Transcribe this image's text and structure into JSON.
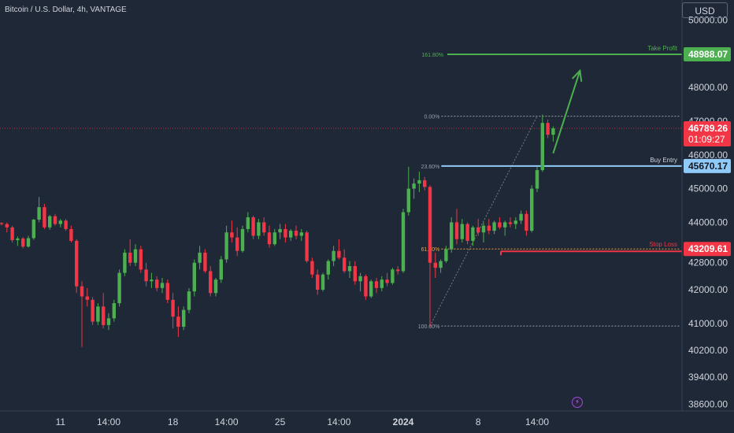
{
  "header": {
    "title": "Bitcoin / U.S. Dollar, 4h, VANTAGE",
    "currency": "USD"
  },
  "colors": {
    "background": "#1f2837",
    "axis_text": "#d1d4dc",
    "up": "#4caf50",
    "down": "#f23645",
    "take_profit": "#4caf50",
    "stop_loss": "#f23645",
    "entry": "#90caf9",
    "last_price": "#f23645"
  },
  "chart_data": {
    "type": "candlestick",
    "title": "Bitcoin / U.S. Dollar, 4h, VANTAGE",
    "y_ticks": [
      "50000.00",
      "48000.00",
      "47000.00",
      "46000.00",
      "45000.00",
      "44000.00",
      "42800.00",
      "42000.00",
      "41000.00",
      "40200.00",
      "39400.00",
      "38600.00"
    ],
    "y_tick_values": [
      50000,
      48000,
      47000,
      46000,
      45000,
      44000,
      42800,
      42000,
      41000,
      40200,
      39400,
      38600
    ],
    "x_ticks": [
      "11",
      "14:00",
      "18",
      "14:00",
      "25",
      "14:00",
      "2024",
      "8",
      "14:00"
    ],
    "x_tick_index": [
      11,
      20,
      32,
      42,
      52,
      63,
      75,
      89,
      100
    ],
    "ylim": [
      38400,
      50600
    ],
    "grid": false,
    "candles": [
      [
        43980,
        44000,
        43910,
        43950
      ],
      [
        43950,
        43990,
        43700,
        43850
      ],
      [
        43850,
        43900,
        43400,
        43470
      ],
      [
        43470,
        43580,
        43300,
        43520
      ],
      [
        43520,
        43560,
        43230,
        43280
      ],
      [
        43280,
        43600,
        43250,
        43530
      ],
      [
        43530,
        44100,
        43480,
        44080
      ],
      [
        44080,
        44750,
        44000,
        44450
      ],
      [
        44450,
        44550,
        43800,
        43850
      ],
      [
        43850,
        44220,
        43780,
        44180
      ],
      [
        44180,
        44250,
        43900,
        43950
      ],
      [
        43950,
        44100,
        43850,
        44050
      ],
      [
        44050,
        44100,
        43750,
        43800
      ],
      [
        43800,
        43900,
        43400,
        43450
      ],
      [
        43450,
        43500,
        41900,
        42100
      ],
      [
        42100,
        42250,
        40300,
        41800
      ],
      [
        41800,
        42050,
        41500,
        41700
      ],
      [
        41700,
        41780,
        40950,
        41050
      ],
      [
        41050,
        41600,
        40950,
        41500
      ],
      [
        41500,
        41900,
        40850,
        40950
      ],
      [
        40950,
        41300,
        40800,
        41150
      ],
      [
        41150,
        41700,
        41050,
        41600
      ],
      [
        41600,
        42600,
        41500,
        42500
      ],
      [
        42500,
        43200,
        42400,
        43100
      ],
      [
        43100,
        43500,
        42700,
        42800
      ],
      [
        42800,
        43350,
        42700,
        43200
      ],
      [
        43200,
        43300,
        42500,
        42600
      ],
      [
        42600,
        42800,
        42100,
        42250
      ],
      [
        42250,
        42500,
        42050,
        42300
      ],
      [
        42300,
        42400,
        41950,
        42050
      ],
      [
        42050,
        42350,
        41900,
        42200
      ],
      [
        42200,
        42300,
        41600,
        41700
      ],
      [
        41700,
        41900,
        40850,
        41200
      ],
      [
        41200,
        41500,
        40600,
        40900
      ],
      [
        40900,
        41500,
        40800,
        41400
      ],
      [
        41400,
        42050,
        41300,
        41950
      ],
      [
        41950,
        42900,
        41800,
        42800
      ],
      [
        42800,
        43300,
        42600,
        43100
      ],
      [
        43100,
        43200,
        42500,
        42550
      ],
      [
        42550,
        42700,
        41800,
        41900
      ],
      [
        41900,
        42350,
        41800,
        42300
      ],
      [
        42300,
        43000,
        42200,
        42900
      ],
      [
        42900,
        43900,
        42800,
        43700
      ],
      [
        43700,
        44050,
        43400,
        43550
      ],
      [
        43550,
        43850,
        43000,
        43150
      ],
      [
        43150,
        43900,
        43100,
        43800
      ],
      [
        43800,
        44300,
        43700,
        44150
      ],
      [
        44150,
        44200,
        43500,
        43600
      ],
      [
        43600,
        44100,
        43500,
        44000
      ],
      [
        44000,
        44150,
        43600,
        43700
      ],
      [
        43700,
        43900,
        43250,
        43350
      ],
      [
        43350,
        43800,
        43300,
        43700
      ],
      [
        43700,
        43950,
        43500,
        43800
      ],
      [
        43800,
        43950,
        43400,
        43550
      ],
      [
        43550,
        43800,
        43450,
        43750
      ],
      [
        43750,
        43900,
        43500,
        43600
      ],
      [
        43600,
        43800,
        43450,
        43700
      ],
      [
        43700,
        43750,
        42800,
        42850
      ],
      [
        42850,
        42950,
        42350,
        42450
      ],
      [
        42450,
        42600,
        41850,
        42000
      ],
      [
        42000,
        42500,
        41950,
        42450
      ],
      [
        42450,
        42900,
        42300,
        42850
      ],
      [
        42850,
        43300,
        42700,
        43150
      ],
      [
        43150,
        43500,
        42900,
        42950
      ],
      [
        42950,
        43200,
        42500,
        42550
      ],
      [
        42550,
        42850,
        42350,
        42700
      ],
      [
        42700,
        42850,
        42150,
        42250
      ],
      [
        42250,
        42500,
        41950,
        42400
      ],
      [
        42400,
        42450,
        41700,
        41800
      ],
      [
        41800,
        42300,
        41750,
        42250
      ],
      [
        42250,
        42350,
        41900,
        42050
      ],
      [
        42050,
        42400,
        41950,
        42300
      ],
      [
        42300,
        42500,
        42100,
        42200
      ],
      [
        42200,
        42650,
        42150,
        42600
      ],
      [
        42600,
        42700,
        42450,
        42550
      ],
      [
        42550,
        44400,
        42500,
        44300
      ],
      [
        44300,
        45650,
        44200,
        45000
      ],
      [
        45000,
        45300,
        44700,
        45150
      ],
      [
        45150,
        45500,
        44900,
        45250
      ],
      [
        45250,
        45350,
        44950,
        45050
      ],
      [
        45050,
        45100,
        40900,
        42800
      ],
      [
        42800,
        43100,
        42350,
        42650
      ],
      [
        42650,
        42900,
        42500,
        42850
      ],
      [
        42850,
        43300,
        42800,
        43200
      ],
      [
        43200,
        44150,
        43100,
        44000
      ],
      [
        44000,
        44400,
        43350,
        43500
      ],
      [
        43500,
        44100,
        43400,
        43950
      ],
      [
        43950,
        44000,
        43350,
        43450
      ],
      [
        43450,
        43900,
        43300,
        43850
      ],
      [
        43850,
        44100,
        43600,
        43700
      ],
      [
        43700,
        44000,
        43400,
        43900
      ],
      [
        43900,
        44100,
        43650,
        43750
      ],
      [
        43750,
        44050,
        43650,
        44000
      ],
      [
        44000,
        44150,
        43800,
        43850
      ],
      [
        43850,
        44050,
        43600,
        44000
      ],
      [
        44000,
        44150,
        43850,
        43950
      ],
      [
        43950,
        44150,
        43800,
        44050
      ],
      [
        44050,
        44350,
        43950,
        44250
      ],
      [
        44250,
        44350,
        43600,
        43750
      ],
      [
        43750,
        45100,
        43700,
        45000
      ],
      [
        45000,
        45650,
        44900,
        45550
      ],
      [
        45550,
        47200,
        45500,
        46950
      ],
      [
        46950,
        47050,
        46500,
        46600
      ],
      [
        46600,
        46850,
        46400,
        46790
      ]
    ],
    "fib_levels": [
      {
        "label": "161.80%",
        "value": 48988.07
      },
      {
        "label": "0.00%",
        "value": 47150
      },
      {
        "label": "23.60%",
        "value": 45670.17
      },
      {
        "label": "61.80%",
        "value": 43209.61
      },
      {
        "label": "100.00%",
        "value": 40920
      }
    ],
    "trade_levels": [
      {
        "name": "Take Profit",
        "value": 48988.07,
        "price_label": "48988.07",
        "color": "#4caf50"
      },
      {
        "name": "Buy Entry",
        "value": 45670.17,
        "price_label": "45670.17",
        "color": "#90caf9"
      },
      {
        "name": "Stop Loss",
        "value": 43209.61,
        "price_label": "43209.61",
        "color": "#f23645"
      }
    ],
    "last_price": {
      "value": 46789.26,
      "label": "46789.26",
      "countdown": "01:09:27"
    },
    "projection_arrow": {
      "from_index": 103,
      "from_value": 46050,
      "to_index": 108,
      "to_value": 48500
    }
  }
}
